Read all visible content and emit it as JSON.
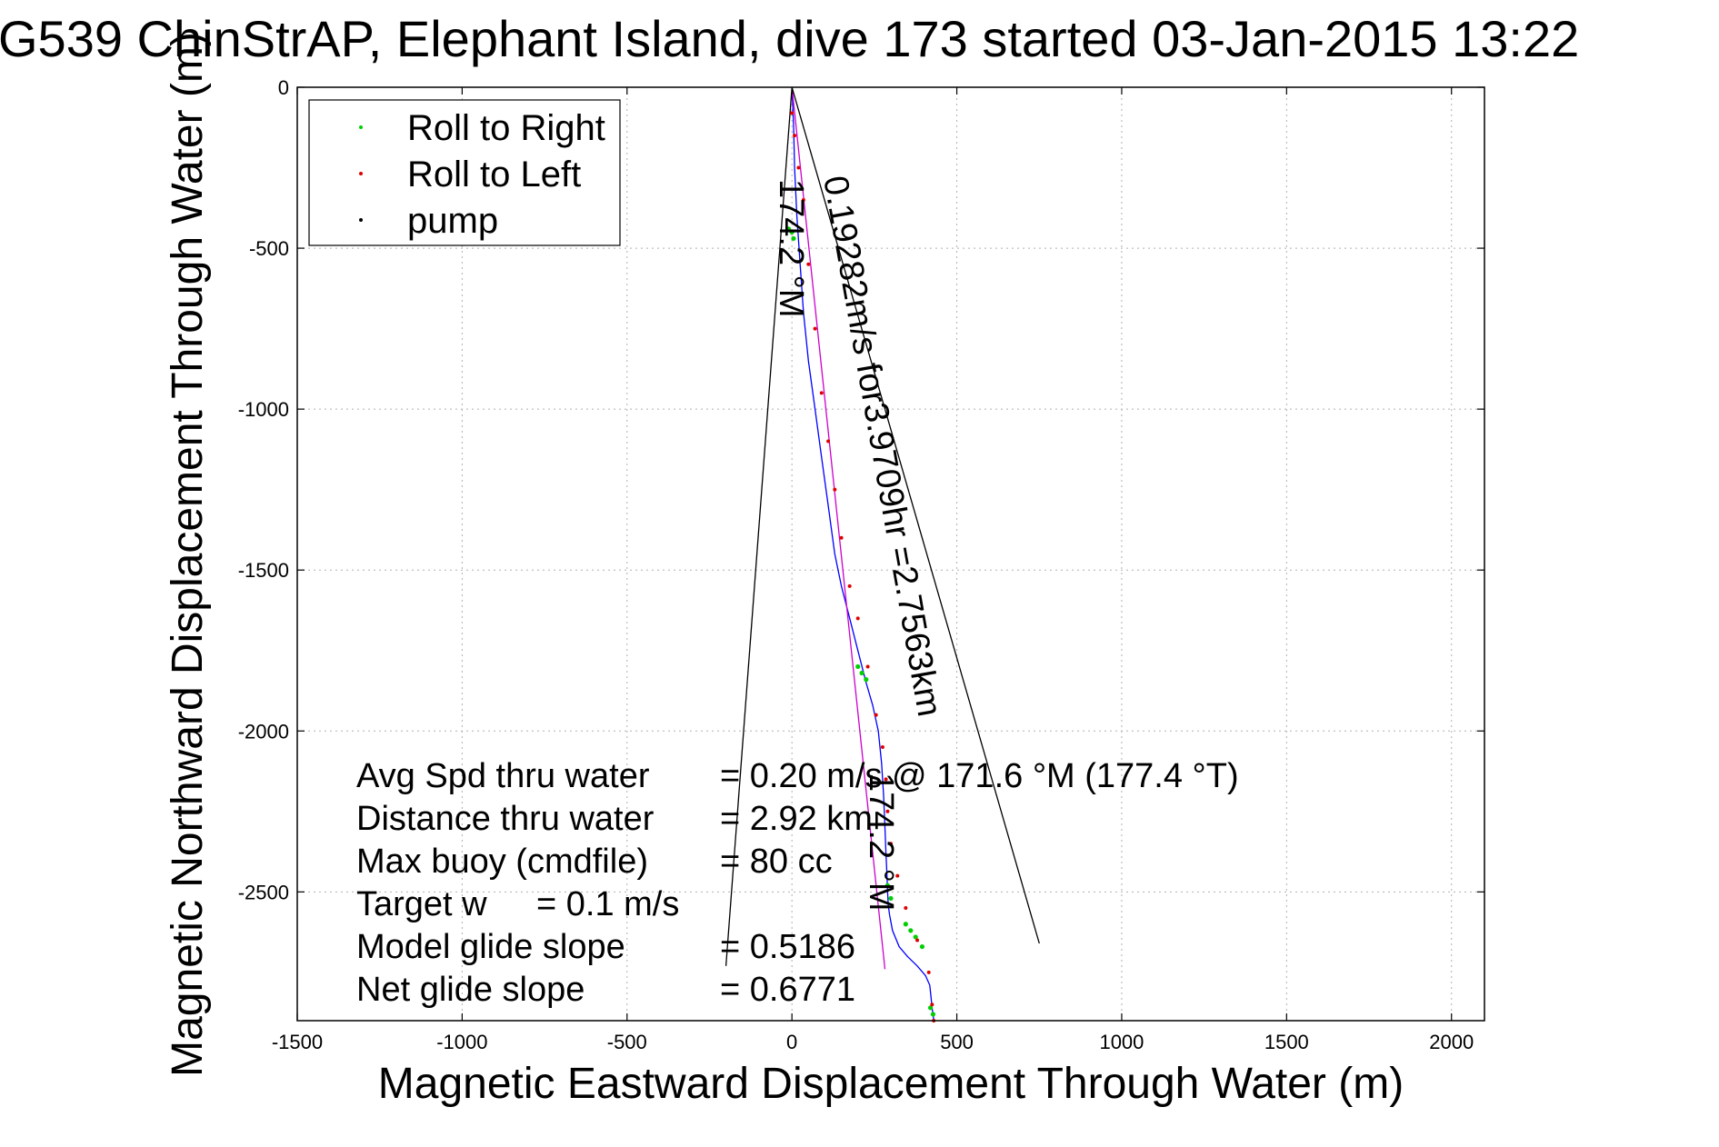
{
  "chart_data": {
    "type": "line",
    "title": "G539 ChinStrAP, Elephant Island, dive 173 started 03-Jan-2015 13:22",
    "xlabel": "Magnetic Eastward Displacement Through Water (m)",
    "ylabel": "Magnetic Northward Displacement Through Water (m)",
    "xlim": [
      -1500,
      2100
    ],
    "ylim": [
      -2900,
      0
    ],
    "xticks": [
      -1500,
      -1000,
      -500,
      0,
      500,
      1000,
      1500,
      2000
    ],
    "yticks": [
      0,
      -500,
      -1000,
      -1500,
      -2000,
      -2500
    ],
    "grid": true,
    "legend": {
      "placement": "top-left",
      "entries": [
        {
          "label": "Roll to Right",
          "color": "#00d000"
        },
        {
          "label": "Roll to Left",
          "color": "#e00000"
        },
        {
          "label": "pump",
          "color": "#000000"
        }
      ]
    },
    "series": [
      {
        "name": "track",
        "color": "#0000ff",
        "x": [
          0,
          5,
          8,
          15,
          25,
          35,
          50,
          70,
          90,
          110,
          130,
          150,
          175,
          200,
          225,
          245,
          262,
          272,
          278,
          282,
          285,
          288,
          290,
          292,
          296,
          305,
          325,
          350,
          380,
          405,
          418,
          422,
          425,
          428,
          430
        ],
        "y": [
          0,
          -120,
          -250,
          -400,
          -550,
          -700,
          -850,
          -1000,
          -1150,
          -1300,
          -1450,
          -1550,
          -1650,
          -1750,
          -1850,
          -1920,
          -2000,
          -2100,
          -2200,
          -2300,
          -2380,
          -2440,
          -2500,
          -2540,
          -2570,
          -2620,
          -2670,
          -2700,
          -2730,
          -2760,
          -2790,
          -2830,
          -2860,
          -2880,
          -2900
        ]
      },
      {
        "name": "dead reckoning",
        "color": "#cc00cc",
        "x": [
          0,
          282
        ],
        "y": [
          0,
          -2740
        ]
      },
      {
        "name": "envelope left",
        "color": "#000000",
        "x": [
          0,
          -200
        ],
        "y": [
          0,
          -2730
        ]
      },
      {
        "name": "envelope right",
        "color": "#000000",
        "x": [
          0,
          750
        ],
        "y": [
          0,
          -2660
        ]
      }
    ],
    "roll_right_points": {
      "x": [
        -10,
        0,
        5,
        200,
        212,
        225,
        290,
        300,
        345,
        360,
        375,
        395,
        420,
        428
      ],
      "y": [
        -440,
        -450,
        -470,
        -1800,
        -1820,
        -1840,
        -2480,
        -2520,
        -2600,
        -2620,
        -2640,
        -2670,
        -2860,
        -2880
      ]
    },
    "roll_left_points": {
      "x": [
        0,
        8,
        20,
        35,
        50,
        70,
        90,
        110,
        130,
        150,
        175,
        200,
        230,
        255,
        275,
        285,
        290,
        300,
        320,
        345,
        380,
        415,
        425,
        430
      ],
      "y": [
        -80,
        -150,
        -250,
        -350,
        -550,
        -750,
        -950,
        -1100,
        -1250,
        -1400,
        -1550,
        -1650,
        -1800,
        -1950,
        -2050,
        -2150,
        -2250,
        -2350,
        -2450,
        -2550,
        -2650,
        -2750,
        -2850,
        -2900
      ]
    },
    "annotations": {
      "heading_top": "174.2 °M",
      "speed_line": "0.19282m/s for3.9709hr =2.7563km",
      "heading_mid": "174.2 °M"
    },
    "stats": [
      {
        "label": "Avg Spd thru water",
        "value": "= 0.20 m/s @ 171.6 °M (177.4 °T)"
      },
      {
        "label": "Distance thru water",
        "value": "= 2.92 km"
      },
      {
        "label": "Max buoy (cmdfile)",
        "value": "= 80 cc"
      },
      {
        "label": "Target w",
        "value": "= 0.1 m/s"
      },
      {
        "label": "Model glide slope",
        "value": "= 0.5186"
      },
      {
        "label": "Net glide slope",
        "value": "= 0.6771"
      }
    ]
  }
}
